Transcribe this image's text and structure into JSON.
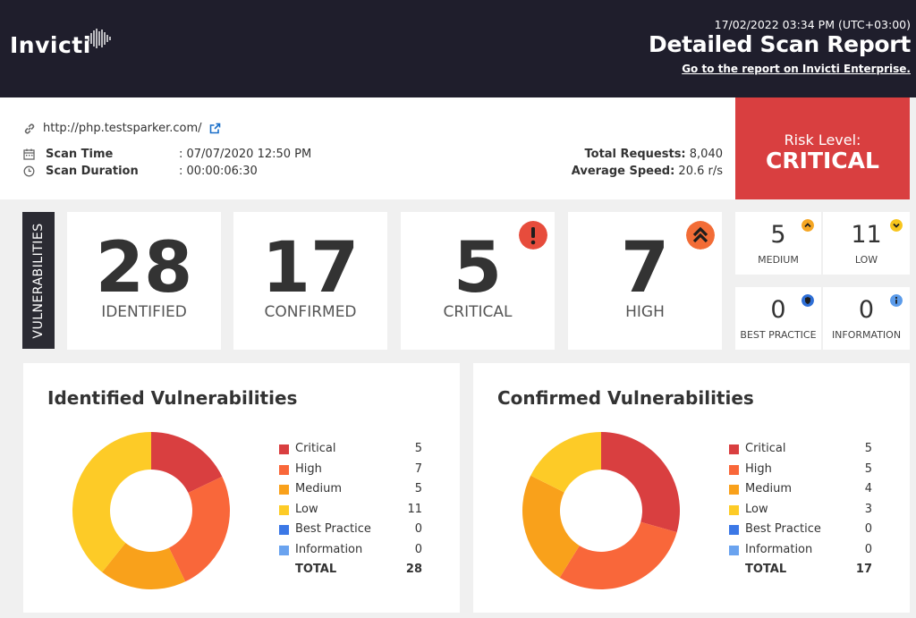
{
  "header": {
    "brand": "Invicti",
    "datetime": "17/02/2022 03:34 PM (UTC+03:00)",
    "title": "Detailed Scan Report",
    "link": "Go to the report on Invicti Enterprise."
  },
  "info": {
    "url": "http://php.testsparker.com/",
    "scan_time_label": "Scan Time",
    "scan_time_value": ": 07/07/2020 12:50 PM",
    "scan_duration_label": "Scan Duration",
    "scan_duration_value": ": 00:00:06:30",
    "total_requests_label": "Total Requests:",
    "total_requests_value": "8,040",
    "avg_speed_label": "Average Speed:",
    "avg_speed_value": "20.6 r/s"
  },
  "risk": {
    "label": "Risk Level:",
    "value": "CRITICAL",
    "color": "#d93f40"
  },
  "vulnerabilities": {
    "tab_label": "VULNERABILITIES",
    "identified": {
      "value": "28",
      "label": "IDENTIFIED"
    },
    "confirmed": {
      "value": "17",
      "label": "CONFIRMED"
    },
    "critical": {
      "value": "5",
      "label": "CRITICAL",
      "icon": "exclamation-icon",
      "color": "#e74c3c"
    },
    "high": {
      "value": "7",
      "label": "HIGH",
      "icon": "double-chevron-up-icon",
      "color": "#f26c36"
    },
    "medium": {
      "value": "5",
      "label": "MEDIUM",
      "icon": "chevron-up-icon",
      "color": "#f5a623"
    },
    "low": {
      "value": "11",
      "label": "LOW",
      "icon": "chevron-down-icon",
      "color": "#f8c51c"
    },
    "best_practice": {
      "value": "0",
      "label": "BEST PRACTICE",
      "icon": "shield-icon",
      "color": "#2f6fd6"
    },
    "information": {
      "value": "0",
      "label": "INFORMATION",
      "icon": "info-icon",
      "color": "#5b9bea"
    }
  },
  "charts": {
    "colors": {
      "critical": "#d93f40",
      "high": "#f9673a",
      "medium": "#f9a11b",
      "low": "#fdcb27",
      "best_practice": "#3c78e6",
      "information": "#6aa3ef"
    },
    "identified": {
      "title": "Identified Vulnerabilities",
      "items": [
        {
          "name": "Critical",
          "value": "5"
        },
        {
          "name": "High",
          "value": "7"
        },
        {
          "name": "Medium",
          "value": "5"
        },
        {
          "name": "Low",
          "value": "11"
        },
        {
          "name": "Best Practice",
          "value": "0"
        },
        {
          "name": "Information",
          "value": "0"
        }
      ],
      "total_label": "TOTAL",
      "total_value": "28"
    },
    "confirmed": {
      "title": "Confirmed Vulnerabilities",
      "items": [
        {
          "name": "Critical",
          "value": "5"
        },
        {
          "name": "High",
          "value": "5"
        },
        {
          "name": "Medium",
          "value": "4"
        },
        {
          "name": "Low",
          "value": "3"
        },
        {
          "name": "Best Practice",
          "value": "0"
        },
        {
          "name": "Information",
          "value": "0"
        }
      ],
      "total_label": "TOTAL",
      "total_value": "17"
    }
  },
  "chart_data": [
    {
      "type": "pie",
      "title": "Identified Vulnerabilities",
      "categories": [
        "Critical",
        "High",
        "Medium",
        "Low",
        "Best Practice",
        "Information"
      ],
      "values": [
        5,
        7,
        5,
        11,
        0,
        0
      ]
    },
    {
      "type": "pie",
      "title": "Confirmed Vulnerabilities",
      "categories": [
        "Critical",
        "High",
        "Medium",
        "Low",
        "Best Practice",
        "Information"
      ],
      "values": [
        5,
        5,
        4,
        3,
        0,
        0
      ]
    }
  ]
}
